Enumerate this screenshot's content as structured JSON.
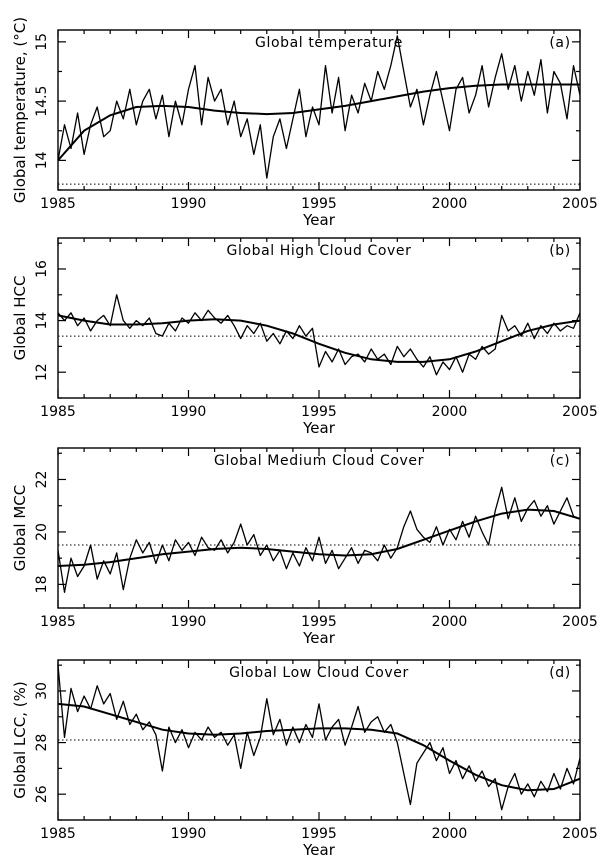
{
  "chart_data": [
    {
      "type": "line",
      "panel_label": "(a)",
      "title": "Global temperature",
      "xlabel": "Year",
      "ylabel": "Global temperature, (°C)",
      "xlim": [
        1985,
        2005
      ],
      "ylim": [
        13.75,
        15.1
      ],
      "xticks": [
        1985,
        1990,
        1995,
        2000,
        2005
      ],
      "yticks": [
        14,
        14.5,
        15
      ],
      "reference_level": 13.8,
      "trend": {
        "x": [
          1985,
          1986,
          1987,
          1988,
          1989,
          1990,
          1991,
          1992,
          1993,
          1994,
          1995,
          1996,
          1997,
          1998,
          1999,
          2000,
          2001,
          2002,
          2003,
          2004,
          2005
        ],
        "y": [
          14.0,
          14.25,
          14.38,
          14.45,
          14.46,
          14.45,
          14.42,
          14.4,
          14.39,
          14.4,
          14.43,
          14.46,
          14.5,
          14.54,
          14.58,
          14.61,
          14.63,
          14.64,
          14.64,
          14.64,
          14.64
        ]
      },
      "series": [
        {
          "x": [
            1985,
            1985.25,
            1985.5,
            1985.75,
            1986,
            1986.25,
            1986.5,
            1986.75,
            1987,
            1987.25,
            1987.5,
            1987.75,
            1988,
            1988.25,
            1988.5,
            1988.75,
            1989,
            1989.25,
            1989.5,
            1989.75,
            1990,
            1990.25,
            1990.5,
            1990.75,
            1991,
            1991.25,
            1991.5,
            1991.75,
            1992,
            1992.25,
            1992.5,
            1992.75,
            1993,
            1993.25,
            1993.5,
            1993.75,
            1994,
            1994.25,
            1994.5,
            1994.75,
            1995,
            1995.25,
            1995.5,
            1995.75,
            1996,
            1996.25,
            1996.5,
            1996.75,
            1997,
            1997.25,
            1997.5,
            1997.75,
            1998,
            1998.25,
            1998.5,
            1998.75,
            1999,
            1999.25,
            1999.5,
            1999.75,
            2000,
            2000.25,
            2000.5,
            2000.75,
            2001,
            2001.25,
            2001.5,
            2001.75,
            2002,
            2002.25,
            2002.5,
            2002.75,
            2003,
            2003.25,
            2003.5,
            2003.75,
            2004,
            2004.25,
            2004.5,
            2004.75,
            2005
          ],
          "y": [
            14.0,
            14.3,
            14.1,
            14.4,
            14.05,
            14.3,
            14.45,
            14.2,
            14.25,
            14.5,
            14.35,
            14.6,
            14.3,
            14.5,
            14.6,
            14.35,
            14.55,
            14.2,
            14.5,
            14.3,
            14.6,
            14.8,
            14.3,
            14.7,
            14.5,
            14.6,
            14.3,
            14.5,
            14.2,
            14.35,
            14.05,
            14.3,
            13.85,
            14.2,
            14.35,
            14.1,
            14.35,
            14.6,
            14.2,
            14.45,
            14.3,
            14.8,
            14.4,
            14.7,
            14.25,
            14.55,
            14.4,
            14.65,
            14.5,
            14.75,
            14.6,
            14.8,
            15.05,
            14.75,
            14.45,
            14.6,
            14.3,
            14.55,
            14.75,
            14.5,
            14.25,
            14.6,
            14.7,
            14.4,
            14.55,
            14.8,
            14.45,
            14.7,
            14.9,
            14.6,
            14.8,
            14.5,
            14.75,
            14.55,
            14.85,
            14.4,
            14.75,
            14.65,
            14.35,
            14.8,
            14.55
          ]
        }
      ]
    },
    {
      "type": "line",
      "panel_label": "(b)",
      "title": "Global High Cloud Cover",
      "xlabel": "Year",
      "ylabel": "Global HCC",
      "xlim": [
        1985,
        2005
      ],
      "ylim": [
        11.0,
        17.2
      ],
      "xticks": [
        1985,
        1990,
        1995,
        2000,
        2005
      ],
      "yticks": [
        12,
        14,
        16
      ],
      "reference_level": 13.4,
      "trend": {
        "x": [
          1985,
          1986,
          1987,
          1988,
          1989,
          1990,
          1991,
          1992,
          1993,
          1994,
          1995,
          1996,
          1997,
          1998,
          1999,
          2000,
          2001,
          2002,
          2003,
          2004,
          2005
        ],
        "y": [
          14.2,
          14.0,
          13.85,
          13.85,
          13.9,
          14.0,
          14.05,
          14.0,
          13.8,
          13.5,
          13.1,
          12.75,
          12.5,
          12.4,
          12.4,
          12.5,
          12.8,
          13.2,
          13.6,
          13.85,
          14.0
        ]
      },
      "series": [
        {
          "x": [
            1985,
            1985.25,
            1985.5,
            1985.75,
            1986,
            1986.25,
            1986.5,
            1986.75,
            1987,
            1987.25,
            1987.5,
            1987.75,
            1988,
            1988.25,
            1988.5,
            1988.75,
            1989,
            1989.25,
            1989.5,
            1989.75,
            1990,
            1990.25,
            1990.5,
            1990.75,
            1991,
            1991.25,
            1991.5,
            1991.75,
            1992,
            1992.25,
            1992.5,
            1992.75,
            1993,
            1993.25,
            1993.5,
            1993.75,
            1994,
            1994.25,
            1994.5,
            1994.75,
            1995,
            1995.25,
            1995.5,
            1995.75,
            1996,
            1996.25,
            1996.5,
            1996.75,
            1997,
            1997.25,
            1997.5,
            1997.75,
            1998,
            1998.25,
            1998.5,
            1998.75,
            1999,
            1999.25,
            1999.5,
            1999.75,
            2000,
            2000.25,
            2000.5,
            2000.75,
            2001,
            2001.25,
            2001.5,
            2001.75,
            2002,
            2002.25,
            2002.5,
            2002.75,
            2003,
            2003.25,
            2003.5,
            2003.75,
            2004,
            2004.25,
            2004.5,
            2004.75,
            2005
          ],
          "y": [
            14.3,
            14.0,
            14.3,
            13.8,
            14.1,
            13.6,
            14.0,
            14.2,
            13.8,
            15.0,
            14.0,
            13.7,
            14.0,
            13.8,
            14.1,
            13.5,
            13.4,
            13.9,
            13.6,
            14.1,
            13.9,
            14.3,
            14.0,
            14.4,
            14.1,
            13.9,
            14.2,
            13.8,
            13.3,
            13.8,
            13.5,
            13.9,
            13.2,
            13.5,
            13.1,
            13.6,
            13.3,
            13.8,
            13.4,
            13.7,
            12.2,
            12.8,
            12.4,
            12.9,
            12.3,
            12.6,
            12.7,
            12.4,
            12.9,
            12.5,
            12.7,
            12.3,
            13.0,
            12.6,
            12.9,
            12.5,
            12.2,
            12.6,
            11.9,
            12.4,
            12.1,
            12.6,
            12.0,
            12.7,
            12.5,
            13.0,
            12.7,
            12.9,
            14.2,
            13.6,
            13.8,
            13.4,
            13.9,
            13.3,
            13.8,
            13.5,
            13.9,
            13.6,
            13.8,
            13.7,
            14.3
          ]
        }
      ]
    },
    {
      "type": "line",
      "panel_label": "(c)",
      "title": "Global Medium Cloud Cover",
      "xlabel": "Year",
      "ylabel": "Global MCC",
      "xlim": [
        1985,
        2005
      ],
      "ylim": [
        17.1,
        23.2
      ],
      "xticks": [
        1985,
        1990,
        1995,
        2000,
        2005
      ],
      "yticks": [
        18,
        20,
        22
      ],
      "reference_level": 19.5,
      "trend": {
        "x": [
          1985,
          1986,
          1987,
          1988,
          1989,
          1990,
          1991,
          1992,
          1993,
          1994,
          1995,
          1996,
          1997,
          1998,
          1999,
          2000,
          2001,
          2002,
          2003,
          2004,
          2005
        ],
        "y": [
          18.7,
          18.75,
          18.85,
          19.0,
          19.15,
          19.25,
          19.35,
          19.4,
          19.35,
          19.25,
          19.15,
          19.1,
          19.15,
          19.35,
          19.7,
          20.05,
          20.4,
          20.7,
          20.85,
          20.8,
          20.5
        ]
      },
      "series": [
        {
          "x": [
            1985,
            1985.25,
            1985.5,
            1985.75,
            1986,
            1986.25,
            1986.5,
            1986.75,
            1987,
            1987.25,
            1987.5,
            1987.75,
            1988,
            1988.25,
            1988.5,
            1988.75,
            1989,
            1989.25,
            1989.5,
            1989.75,
            1990,
            1990.25,
            1990.5,
            1990.75,
            1991,
            1991.25,
            1991.5,
            1991.75,
            1992,
            1992.25,
            1992.5,
            1992.75,
            1993,
            1993.25,
            1993.5,
            1993.75,
            1994,
            1994.25,
            1994.5,
            1994.75,
            1995,
            1995.25,
            1995.5,
            1995.75,
            1996,
            1996.25,
            1996.5,
            1996.75,
            1997,
            1997.25,
            1997.5,
            1997.75,
            1998,
            1998.25,
            1998.5,
            1998.75,
            1999,
            1999.25,
            1999.5,
            1999.75,
            2000,
            2000.25,
            2000.5,
            2000.75,
            2001,
            2001.25,
            2001.5,
            2001.75,
            2002,
            2002.25,
            2002.5,
            2002.75,
            2003,
            2003.25,
            2003.5,
            2003.75,
            2004,
            2004.25,
            2004.5,
            2004.75,
            2005
          ],
          "y": [
            19.3,
            17.7,
            19.0,
            18.3,
            18.7,
            19.5,
            18.2,
            18.9,
            18.4,
            19.2,
            17.8,
            19.0,
            19.7,
            19.2,
            19.6,
            18.8,
            19.5,
            18.9,
            19.7,
            19.3,
            19.6,
            19.1,
            19.8,
            19.4,
            19.3,
            19.7,
            19.2,
            19.6,
            20.3,
            19.5,
            19.9,
            19.1,
            19.5,
            18.9,
            19.3,
            18.6,
            19.2,
            18.7,
            19.4,
            18.9,
            19.8,
            18.8,
            19.3,
            18.6,
            19.0,
            19.4,
            18.8,
            19.3,
            19.2,
            18.9,
            19.5,
            19.0,
            19.4,
            20.2,
            20.8,
            20.1,
            19.8,
            19.6,
            20.2,
            19.5,
            20.1,
            19.7,
            20.4,
            19.8,
            20.6,
            20.0,
            19.5,
            20.8,
            21.7,
            20.5,
            21.3,
            20.4,
            20.9,
            21.2,
            20.6,
            21.0,
            20.3,
            20.8,
            21.3,
            20.6,
            20.5
          ]
        }
      ]
    },
    {
      "type": "line",
      "panel_label": "(d)",
      "title": "Global Low Cloud Cover",
      "xlabel": "Year",
      "ylabel": "Global LCC, (%)",
      "xlim": [
        1985,
        2005
      ],
      "ylim": [
        25.0,
        31.2
      ],
      "xticks": [
        1985,
        1990,
        1995,
        2000,
        2005
      ],
      "yticks": [
        26,
        28,
        30
      ],
      "reference_level": 28.1,
      "trend": {
        "x": [
          1985,
          1986,
          1987,
          1988,
          1989,
          1990,
          1991,
          1992,
          1993,
          1994,
          1995,
          1996,
          1997,
          1998,
          1999,
          2000,
          2001,
          2002,
          2003,
          2004,
          2005
        ],
        "y": [
          29.5,
          29.4,
          29.1,
          28.8,
          28.5,
          28.35,
          28.3,
          28.35,
          28.45,
          28.5,
          28.55,
          28.55,
          28.5,
          28.35,
          27.9,
          27.3,
          26.75,
          26.35,
          26.15,
          26.2,
          26.6
        ]
      },
      "series": [
        {
          "x": [
            1985,
            1985.25,
            1985.5,
            1985.75,
            1986,
            1986.25,
            1986.5,
            1986.75,
            1987,
            1987.25,
            1987.5,
            1987.75,
            1988,
            1988.25,
            1988.5,
            1988.75,
            1989,
            1989.25,
            1989.5,
            1989.75,
            1990,
            1990.25,
            1990.5,
            1990.75,
            1991,
            1991.25,
            1991.5,
            1991.75,
            1992,
            1992.25,
            1992.5,
            1992.75,
            1993,
            1993.25,
            1993.5,
            1993.75,
            1994,
            1994.25,
            1994.5,
            1994.75,
            1995,
            1995.25,
            1995.5,
            1995.75,
            1996,
            1996.25,
            1996.5,
            1996.75,
            1997,
            1997.25,
            1997.5,
            1997.75,
            1998,
            1998.25,
            1998.5,
            1998.75,
            1999,
            1999.25,
            1999.5,
            1999.75,
            2000,
            2000.25,
            2000.5,
            2000.75,
            2001,
            2001.25,
            2001.5,
            2001.75,
            2002,
            2002.25,
            2002.5,
            2002.75,
            2003,
            2003.25,
            2003.5,
            2003.75,
            2004,
            2004.25,
            2004.5,
            2004.75,
            2005
          ],
          "y": [
            31.0,
            28.2,
            30.1,
            29.2,
            29.8,
            29.3,
            30.2,
            29.5,
            29.9,
            28.9,
            29.6,
            28.7,
            29.1,
            28.5,
            28.8,
            28.3,
            26.9,
            28.6,
            28.0,
            28.5,
            27.8,
            28.4,
            28.1,
            28.6,
            28.2,
            28.4,
            27.9,
            28.3,
            27.0,
            28.4,
            27.5,
            28.2,
            29.7,
            28.3,
            28.9,
            27.9,
            28.6,
            28.0,
            28.7,
            28.2,
            29.5,
            28.1,
            28.6,
            28.9,
            27.9,
            28.6,
            29.4,
            28.4,
            28.8,
            29.0,
            28.4,
            28.7,
            28.0,
            26.8,
            25.6,
            27.2,
            27.6,
            28.0,
            27.3,
            27.8,
            26.8,
            27.3,
            26.6,
            27.1,
            26.5,
            26.9,
            26.3,
            26.6,
            25.4,
            26.3,
            26.8,
            26.0,
            26.4,
            25.9,
            26.5,
            26.1,
            26.8,
            26.2,
            27.0,
            26.4,
            27.4
          ]
        }
      ]
    }
  ]
}
